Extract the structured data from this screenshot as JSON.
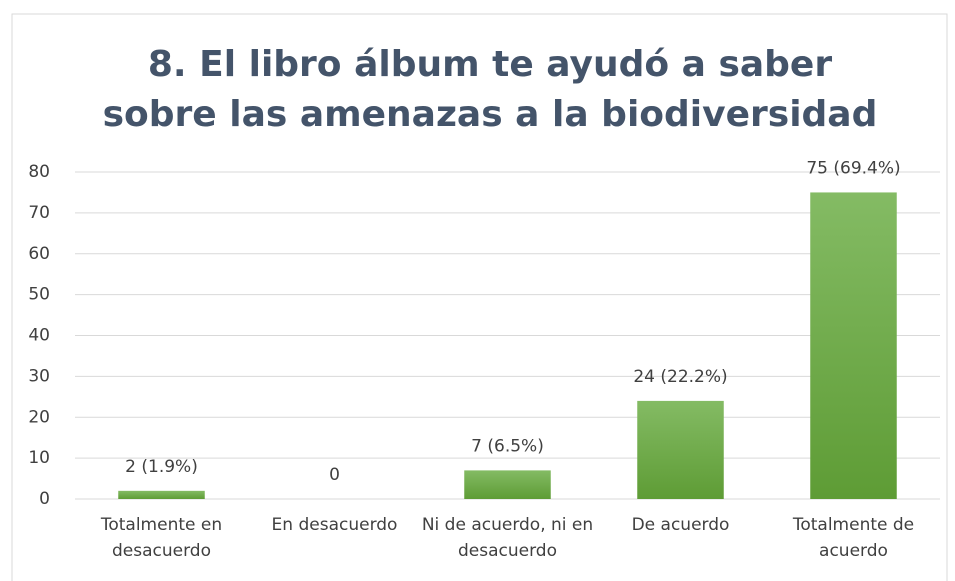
{
  "chart_data": {
    "type": "bar",
    "title": "8. El libro álbum te ayudó a saber sobre las amenazas a la biodiversidad",
    "categories": [
      "Totalmente en desacuerdo",
      "En desacuerdo",
      "Ni de acuerdo, ni en desacuerdo",
      "De acuerdo",
      "Totalmente de acuerdo"
    ],
    "values": [
      2,
      0,
      7,
      24,
      75
    ],
    "value_labels": [
      "2 (1.9%)",
      "0",
      "7 (6.5%)",
      "24 (22.2%)",
      "75 (69.4%)"
    ],
    "color": "#70ad47",
    "ylim": [
      0,
      80
    ],
    "yticks": [
      0,
      10,
      20,
      30,
      40,
      50,
      60,
      70,
      80
    ],
    "grid": true
  }
}
